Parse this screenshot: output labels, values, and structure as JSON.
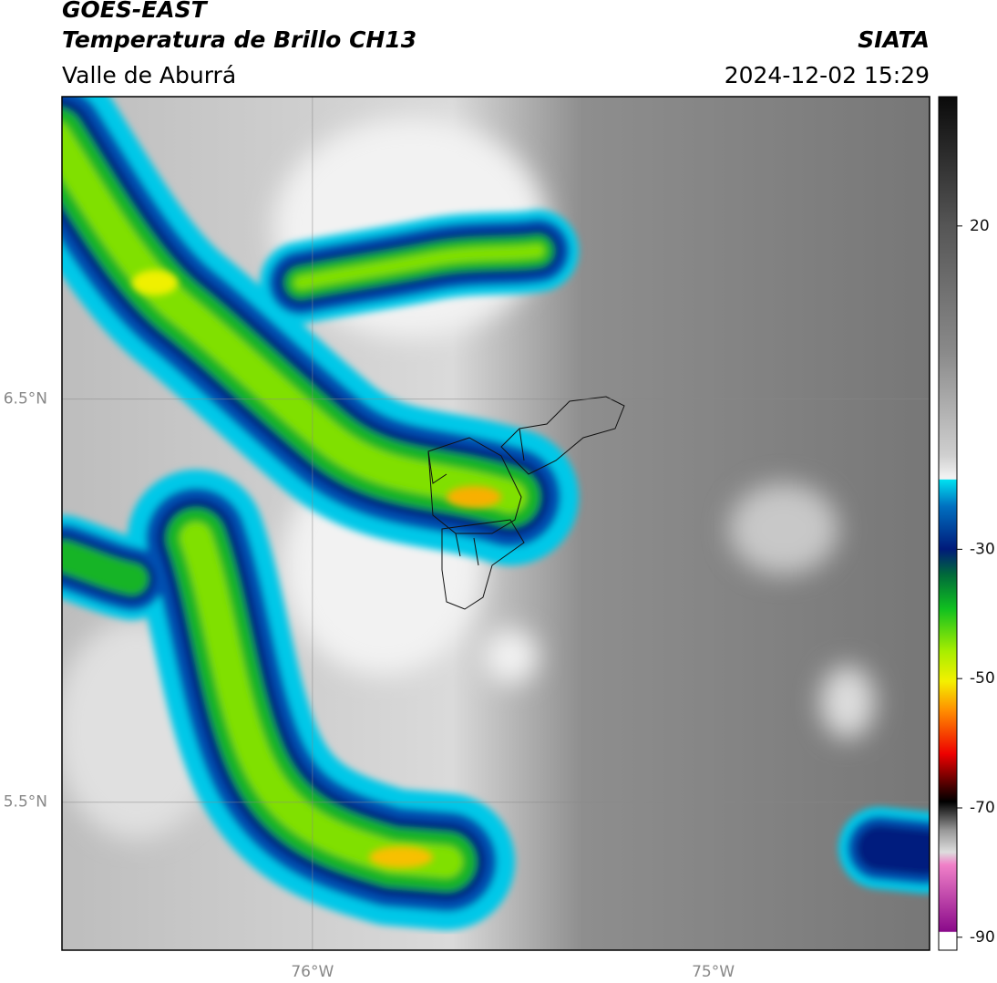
{
  "header": {
    "satellite": "GOES-EAST",
    "product": "Temperatura de Brillo CH13",
    "region": "Valle de Aburrá",
    "source": "SIATA",
    "timestamp": "2024-12-02 15:29"
  },
  "map": {
    "xlim": [
      -76.625,
      -74.46
    ],
    "ylim": [
      5.133,
      7.25
    ],
    "xticks": [
      {
        "value": -76,
        "label": "76°W"
      },
      {
        "value": -75,
        "label": "75°W"
      }
    ],
    "yticks": [
      {
        "value": 6.5,
        "label": "6.5°N"
      },
      {
        "value": 5.5,
        "label": "5.5°N"
      }
    ],
    "grid": true
  },
  "colorbar": {
    "lim": [
      -92,
      40
    ],
    "ticks": [
      20,
      -30,
      -50,
      -70,
      -90
    ]
  }
}
